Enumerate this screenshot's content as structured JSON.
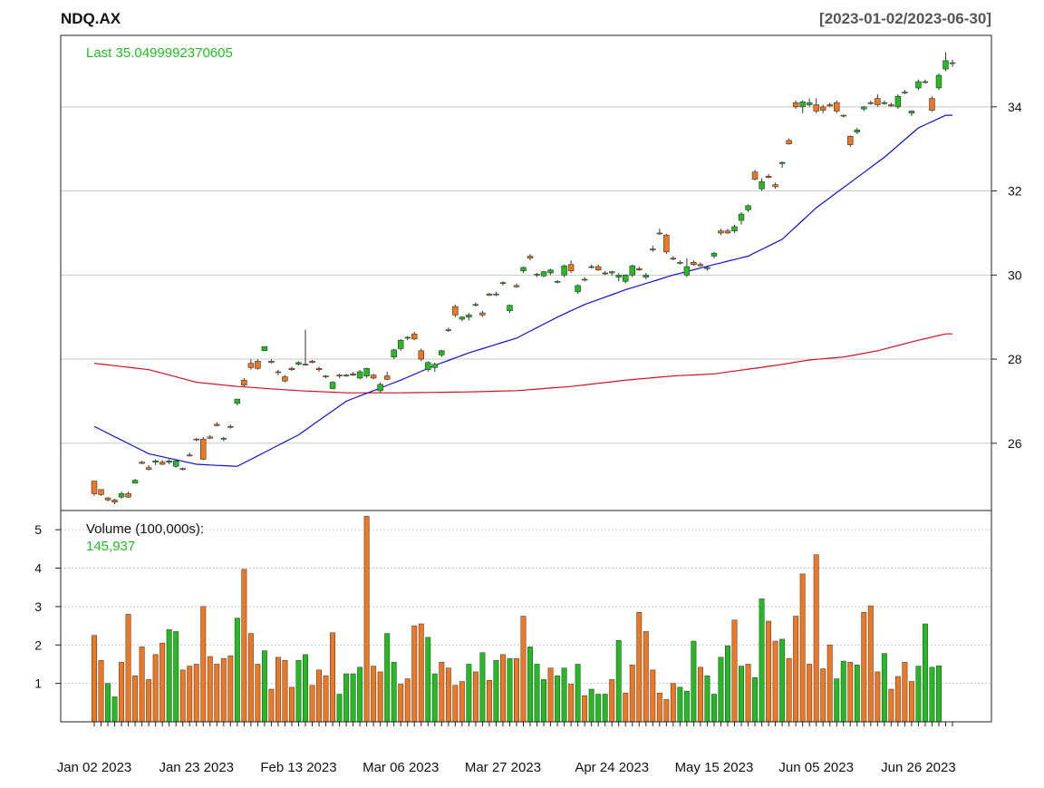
{
  "chart_data": {
    "type": "candlestick",
    "title": "NDQ.AX",
    "date_range": "[2023-01-02/2023-06-30]",
    "last_label": "Last 35.0499992370605",
    "volume_label": "Volume (100,000s):",
    "volume_last": "145,937",
    "price_axis": {
      "ticks": [
        26,
        28,
        30,
        32,
        34
      ],
      "range": [
        24.4,
        35.7
      ],
      "side": "right"
    },
    "volume_axis": {
      "ticks": [
        1,
        2,
        3,
        4,
        5
      ],
      "range": [
        0,
        5.5
      ],
      "side": "left"
    },
    "x_tick_labels": [
      {
        "index": 0,
        "label": "Jan 02 2023"
      },
      {
        "index": 15,
        "label": "Jan 23 2023"
      },
      {
        "index": 30,
        "label": "Feb 13 2023"
      },
      {
        "index": 45,
        "label": "Mar 06 2023"
      },
      {
        "index": 60,
        "label": "Mar 27 2023"
      },
      {
        "index": 76,
        "label": "Apr 24 2023"
      },
      {
        "index": 91,
        "label": "May 15 2023"
      },
      {
        "index": 106,
        "label": "Jun 05 2023"
      },
      {
        "index": 121,
        "label": "Jun 26 2023"
      }
    ],
    "colors": {
      "up": "#22bb22",
      "down": "#ee7722",
      "last_text": "#22bb22",
      "ma_short": "#1111cc",
      "ma_long": "#cc1122",
      "grid": "#c8c8c8"
    },
    "ma_short_anchors": [
      [
        0,
        26.4
      ],
      [
        8,
        25.75
      ],
      [
        15,
        25.5
      ],
      [
        21,
        25.45
      ],
      [
        30,
        26.2
      ],
      [
        37,
        27.0
      ],
      [
        45,
        27.5
      ],
      [
        50,
        27.85
      ],
      [
        55,
        28.15
      ],
      [
        62,
        28.5
      ],
      [
        68,
        29.0
      ],
      [
        72,
        29.3
      ],
      [
        78,
        29.65
      ],
      [
        85,
        30.0
      ],
      [
        91,
        30.25
      ],
      [
        96,
        30.45
      ],
      [
        101,
        30.85
      ],
      [
        106,
        31.6
      ],
      [
        111,
        32.2
      ],
      [
        116,
        32.8
      ],
      [
        121,
        33.5
      ],
      [
        125,
        33.8
      ]
    ],
    "ma_long_anchors": [
      [
        0,
        27.9
      ],
      [
        8,
        27.75
      ],
      [
        15,
        27.45
      ],
      [
        21,
        27.35
      ],
      [
        30,
        27.25
      ],
      [
        37,
        27.2
      ],
      [
        45,
        27.2
      ],
      [
        55,
        27.22
      ],
      [
        62,
        27.25
      ],
      [
        70,
        27.35
      ],
      [
        78,
        27.5
      ],
      [
        85,
        27.6
      ],
      [
        91,
        27.65
      ],
      [
        100,
        27.85
      ],
      [
        105,
        27.98
      ],
      [
        110,
        28.05
      ],
      [
        115,
        28.2
      ],
      [
        121,
        28.45
      ],
      [
        125,
        28.6
      ]
    ],
    "candles": [
      [
        25.1,
        25.1,
        24.75,
        24.8
      ],
      [
        24.9,
        24.9,
        24.75,
        24.78
      ],
      [
        24.7,
        24.72,
        24.62,
        24.65
      ],
      [
        24.65,
        24.68,
        24.55,
        24.6
      ],
      [
        24.72,
        24.85,
        24.68,
        24.8
      ],
      [
        24.8,
        24.85,
        24.7,
        24.72
      ],
      [
        25.05,
        25.15,
        25.05,
        25.12
      ],
      [
        25.55,
        25.58,
        25.5,
        25.52
      ],
      [
        25.42,
        25.48,
        25.35,
        25.38
      ],
      [
        25.55,
        25.62,
        25.48,
        25.58
      ],
      [
        25.55,
        25.6,
        25.48,
        25.5
      ],
      [
        25.55,
        25.62,
        25.5,
        25.58
      ],
      [
        25.45,
        25.6,
        25.42,
        25.58
      ],
      [
        25.4,
        25.42,
        25.35,
        25.38
      ],
      [
        25.72,
        25.78,
        25.68,
        25.7
      ],
      [
        26.1,
        26.12,
        26.05,
        26.08
      ],
      [
        26.1,
        26.15,
        25.6,
        25.62
      ],
      [
        26.15,
        26.2,
        26.1,
        26.12
      ],
      [
        26.45,
        26.5,
        26.4,
        26.42
      ],
      [
        26.1,
        26.15,
        26.05,
        26.12
      ],
      [
        26.4,
        26.45,
        26.35,
        26.38
      ],
      [
        26.95,
        27.05,
        26.9,
        27.05
      ],
      [
        27.5,
        27.55,
        27.35,
        27.38
      ],
      [
        27.9,
        28.0,
        27.75,
        27.8
      ],
      [
        27.95,
        28.0,
        27.75,
        27.78
      ],
      [
        28.2,
        28.3,
        28.2,
        28.3
      ],
      [
        27.95,
        28.0,
        27.9,
        27.92
      ],
      [
        27.7,
        27.75,
        27.62,
        27.68
      ],
      [
        27.58,
        27.62,
        27.45,
        27.48
      ],
      [
        27.78,
        27.82,
        27.72,
        27.75
      ],
      [
        27.88,
        27.95,
        27.85,
        27.92
      ],
      [
        27.88,
        28.7,
        27.85,
        27.88
      ],
      [
        27.95,
        27.98,
        27.9,
        27.92
      ],
      [
        27.78,
        27.82,
        27.7,
        27.75
      ],
      [
        27.6,
        27.62,
        27.55,
        27.58
      ],
      [
        27.3,
        27.48,
        27.28,
        27.45
      ],
      [
        27.62,
        27.65,
        27.55,
        27.6
      ],
      [
        27.6,
        27.65,
        27.58,
        27.62
      ],
      [
        27.65,
        27.7,
        27.6,
        27.62
      ],
      [
        27.55,
        27.75,
        27.52,
        27.7
      ],
      [
        27.6,
        27.8,
        27.55,
        27.78
      ],
      [
        27.62,
        27.65,
        27.52,
        27.55
      ],
      [
        27.25,
        27.45,
        27.2,
        27.4
      ],
      [
        27.6,
        27.7,
        27.5,
        27.52
      ],
      [
        28.05,
        28.25,
        28.0,
        28.22
      ],
      [
        28.25,
        28.48,
        28.2,
        28.45
      ],
      [
        28.5,
        28.55,
        28.45,
        28.52
      ],
      [
        28.6,
        28.65,
        28.45,
        28.48
      ],
      [
        28.2,
        28.25,
        27.95,
        28.0
      ],
      [
        27.75,
        27.95,
        27.7,
        27.92
      ],
      [
        27.8,
        27.92,
        27.7,
        27.88
      ],
      [
        28.1,
        28.22,
        28.05,
        28.2
      ],
      [
        28.7,
        28.75,
        28.65,
        28.7
      ],
      [
        29.25,
        29.3,
        29.0,
        29.05
      ],
      [
        28.95,
        29.02,
        28.9,
        29.0
      ],
      [
        29.0,
        29.1,
        28.92,
        29.05
      ],
      [
        29.3,
        29.35,
        29.25,
        29.3
      ],
      [
        29.1,
        29.15,
        29.0,
        29.05
      ],
      [
        29.55,
        29.58,
        29.5,
        29.52
      ],
      [
        29.55,
        29.6,
        29.5,
        29.55
      ],
      [
        29.8,
        29.85,
        29.75,
        29.82
      ],
      [
        29.15,
        29.3,
        29.1,
        29.28
      ],
      [
        29.75,
        29.8,
        29.7,
        29.72
      ],
      [
        30.1,
        30.2,
        30.05,
        30.18
      ],
      [
        30.45,
        30.5,
        30.35,
        30.4
      ],
      [
        30.0,
        30.05,
        29.95,
        30.02
      ],
      [
        29.98,
        30.1,
        29.95,
        30.08
      ],
      [
        30.05,
        30.15,
        30.0,
        30.12
      ],
      [
        29.85,
        29.88,
        29.8,
        29.85
      ],
      [
        30.0,
        30.25,
        29.95,
        30.22
      ],
      [
        30.25,
        30.35,
        30.05,
        30.1
      ],
      [
        29.6,
        29.78,
        29.55,
        29.75
      ],
      [
        29.9,
        29.95,
        29.85,
        29.88
      ],
      [
        30.2,
        30.25,
        30.15,
        30.2
      ],
      [
        30.2,
        30.25,
        30.1,
        30.12
      ],
      [
        30.05,
        30.1,
        30.0,
        30.05
      ],
      [
        30.05,
        30.1,
        29.98,
        30.08
      ],
      [
        29.95,
        30.05,
        29.85,
        30.0
      ],
      [
        29.85,
        30.02,
        29.8,
        30.0
      ],
      [
        30.0,
        30.25,
        29.95,
        30.22
      ],
      [
        30.15,
        30.2,
        30.1,
        30.12
      ],
      [
        29.95,
        30.05,
        29.9,
        30.0
      ],
      [
        30.6,
        30.7,
        30.55,
        30.62
      ],
      [
        31.0,
        31.1,
        30.95,
        30.98
      ],
      [
        30.95,
        30.98,
        30.5,
        30.55
      ],
      [
        30.4,
        30.45,
        30.35,
        30.38
      ],
      [
        30.3,
        30.35,
        30.25,
        30.28
      ],
      [
        30.0,
        30.4,
        29.95,
        30.2
      ],
      [
        30.3,
        30.35,
        30.22,
        30.25
      ],
      [
        30.25,
        30.3,
        30.2,
        30.22
      ],
      [
        30.15,
        30.2,
        30.1,
        30.18
      ],
      [
        30.45,
        30.55,
        30.4,
        30.52
      ],
      [
        31.05,
        31.1,
        30.95,
        31.0
      ],
      [
        31.05,
        31.1,
        30.98,
        31.0
      ],
      [
        31.05,
        31.2,
        31.0,
        31.15
      ],
      [
        31.3,
        31.5,
        31.2,
        31.45
      ],
      [
        31.55,
        31.68,
        31.5,
        31.65
      ],
      [
        32.45,
        32.5,
        32.25,
        32.28
      ],
      [
        32.05,
        32.3,
        32.0,
        32.22
      ],
      [
        32.35,
        32.4,
        32.3,
        32.32
      ],
      [
        32.15,
        32.2,
        32.05,
        32.1
      ],
      [
        32.65,
        32.7,
        32.55,
        32.68
      ],
      [
        33.2,
        33.25,
        33.1,
        33.12
      ],
      [
        34.1,
        34.15,
        33.95,
        34.0
      ],
      [
        34.0,
        34.15,
        33.85,
        34.12
      ],
      [
        34.05,
        34.2,
        34.0,
        34.1
      ],
      [
        34.05,
        34.2,
        33.85,
        33.9
      ],
      [
        34.0,
        34.05,
        33.85,
        33.92
      ],
      [
        34.05,
        34.1,
        34.0,
        34.02
      ],
      [
        34.1,
        34.15,
        33.85,
        33.9
      ],
      [
        33.8,
        33.82,
        33.75,
        33.78
      ],
      [
        33.3,
        33.32,
        33.05,
        33.1
      ],
      [
        33.4,
        33.5,
        33.35,
        33.45
      ],
      [
        33.95,
        34.02,
        33.9,
        34.0
      ],
      [
        34.1,
        34.15,
        34.05,
        34.08
      ],
      [
        34.2,
        34.3,
        34.0,
        34.05
      ],
      [
        34.1,
        34.15,
        34.05,
        34.1
      ],
      [
        34.05,
        34.1,
        34.0,
        34.02
      ],
      [
        34.0,
        34.3,
        33.95,
        34.25
      ],
      [
        34.35,
        34.4,
        34.3,
        34.35
      ],
      [
        33.85,
        33.92,
        33.78,
        33.9
      ],
      [
        34.45,
        34.65,
        34.4,
        34.6
      ],
      [
        34.6,
        34.65,
        34.55,
        34.6
      ],
      [
        34.2,
        34.25,
        33.88,
        33.92
      ],
      [
        34.45,
        34.8,
        34.4,
        34.75
      ],
      [
        34.9,
        35.3,
        34.85,
        35.1
      ],
      [
        35.05,
        35.12,
        34.95,
        35.05
      ]
    ],
    "volumes": [
      2.25,
      1.6,
      1.0,
      0.65,
      1.55,
      2.8,
      1.2,
      1.95,
      1.1,
      1.75,
      2.05,
      2.4,
      2.35,
      1.35,
      1.45,
      1.5,
      3.0,
      1.7,
      1.5,
      1.65,
      1.72,
      2.7,
      3.97,
      2.3,
      1.5,
      1.85,
      0.85,
      1.68,
      1.6,
      0.9,
      1.6,
      1.75,
      0.95,
      1.35,
      1.2,
      2.32,
      0.72,
      1.25,
      1.25,
      1.42,
      5.35,
      1.45,
      1.3,
      2.3,
      1.55,
      0.98,
      1.12,
      2.5,
      2.55,
      2.2,
      1.25,
      1.55,
      1.4,
      0.95,
      1.05,
      1.5,
      1.3,
      1.8,
      1.08,
      1.6,
      1.75,
      1.65,
      1.65,
      2.75,
      1.95,
      1.5,
      1.1,
      1.4,
      1.2,
      1.4,
      0.98,
      1.5,
      0.68,
      0.85,
      0.72,
      0.72,
      1.1,
      2.12,
      0.75,
      1.48,
      2.85,
      2.35,
      1.35,
      0.75,
      0.58,
      1.0,
      0.9,
      0.8,
      2.1,
      1.42,
      1.2,
      0.72,
      1.68,
      1.98,
      2.65,
      1.45,
      1.5,
      1.15,
      3.2,
      2.62,
      2.1,
      2.15,
      1.65,
      2.75,
      3.85,
      1.5,
      4.35,
      1.38,
      2.0,
      1.12,
      1.58,
      1.55,
      1.48,
      2.85,
      3.02,
      1.3,
      1.78,
      0.85,
      1.18,
      1.55,
      1.05,
      1.45,
      2.55,
      1.42,
      1.46
    ],
    "volume_up": [
      0,
      0,
      1,
      1,
      0,
      0,
      0,
      0,
      0,
      0,
      0,
      1,
      1,
      0,
      0,
      0,
      0,
      0,
      0,
      0,
      0,
      1,
      0,
      0,
      0,
      1,
      0,
      0,
      0,
      0,
      1,
      1,
      0,
      0,
      0,
      0,
      1,
      1,
      1,
      1,
      0,
      0,
      0,
      1,
      1,
      0,
      0,
      0,
      0,
      1,
      1,
      0,
      0,
      0,
      0,
      1,
      0,
      1,
      0,
      1,
      0,
      1,
      0,
      0,
      1,
      1,
      1,
      0,
      1,
      1,
      0,
      1,
      0,
      1,
      1,
      1,
      0,
      1,
      0,
      0,
      0,
      0,
      0,
      0,
      0,
      0,
      1,
      1,
      1,
      0,
      1,
      1,
      1,
      1,
      0,
      1,
      0,
      1,
      1,
      0,
      0,
      1,
      0,
      0,
      0,
      0,
      0,
      0,
      0,
      1,
      1,
      0,
      1,
      0,
      0,
      0,
      1,
      0,
      0,
      0,
      0,
      1,
      1,
      1,
      1
    ]
  }
}
